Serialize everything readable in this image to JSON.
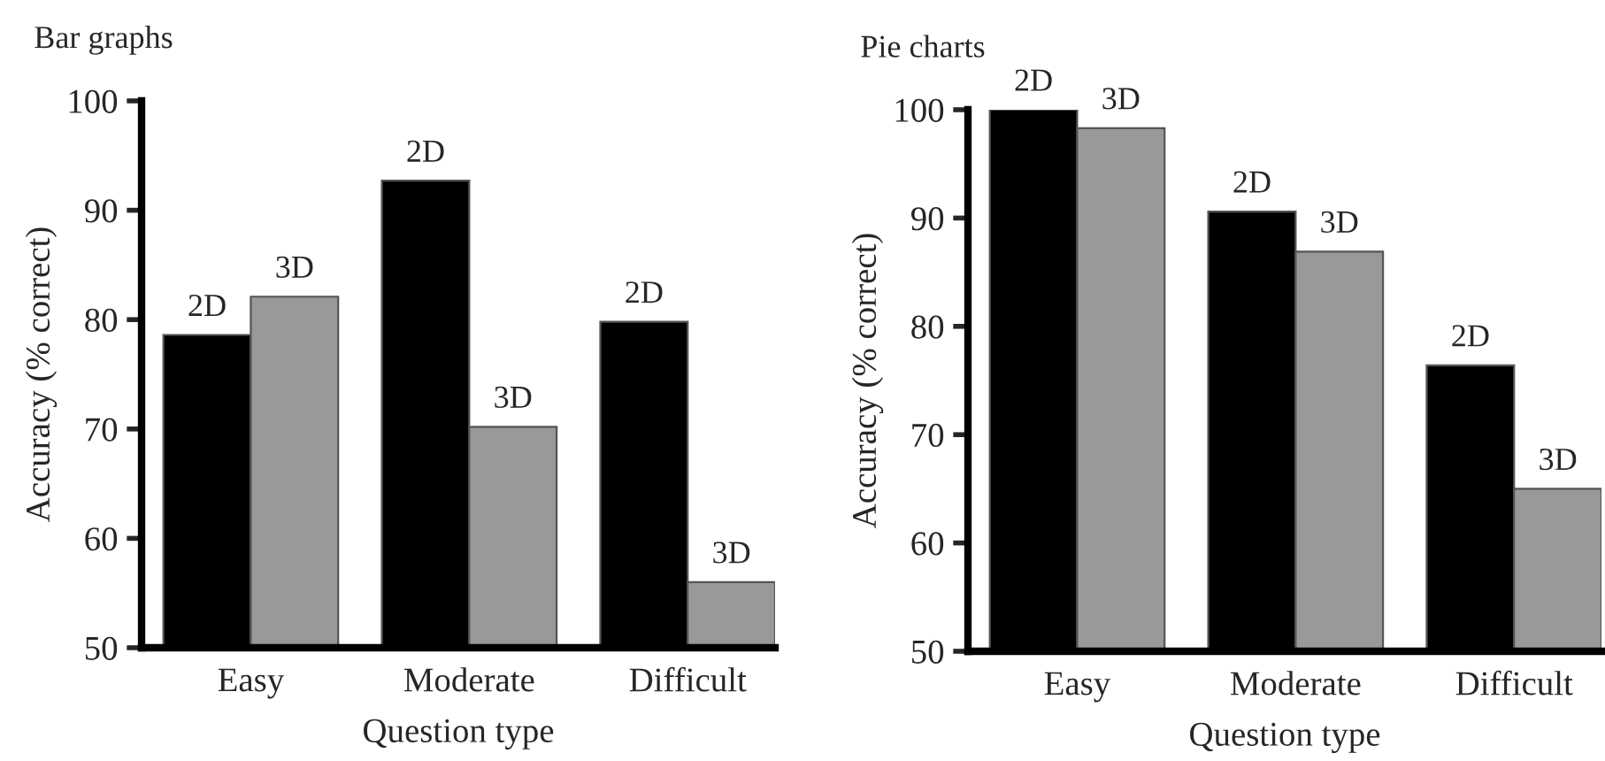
{
  "chart_data": [
    {
      "type": "bar",
      "title": "Bar graphs",
      "xlabel": "Question type",
      "ylabel": "Accuracy (% correct)",
      "categories": [
        "Easy",
        "Moderate",
        "Difficult"
      ],
      "series": [
        {
          "name": "2D",
          "color": "#000000",
          "values": [
            78.6,
            92.7,
            79.8
          ]
        },
        {
          "name": "3D",
          "color": "#999999",
          "values": [
            82.1,
            70.2,
            56.0
          ]
        }
      ],
      "ylim": [
        50,
        100
      ],
      "yticks": [
        50,
        60,
        70,
        80,
        90,
        100
      ],
      "grid": false,
      "legend": false
    },
    {
      "type": "bar",
      "title": "Pie charts",
      "xlabel": "Question type",
      "ylabel": "Accuracy (% correct)",
      "categories": [
        "Easy",
        "Moderate",
        "Difficult"
      ],
      "series": [
        {
          "name": "2D",
          "color": "#000000",
          "values": [
            100,
            90.6,
            76.4
          ]
        },
        {
          "name": "3D",
          "color": "#999999",
          "values": [
            98.3,
            86.9,
            65.0
          ]
        }
      ],
      "ylim": [
        50,
        100
      ],
      "yticks": [
        50,
        60,
        70,
        80,
        90,
        100
      ],
      "grid": false,
      "legend": false
    }
  ]
}
